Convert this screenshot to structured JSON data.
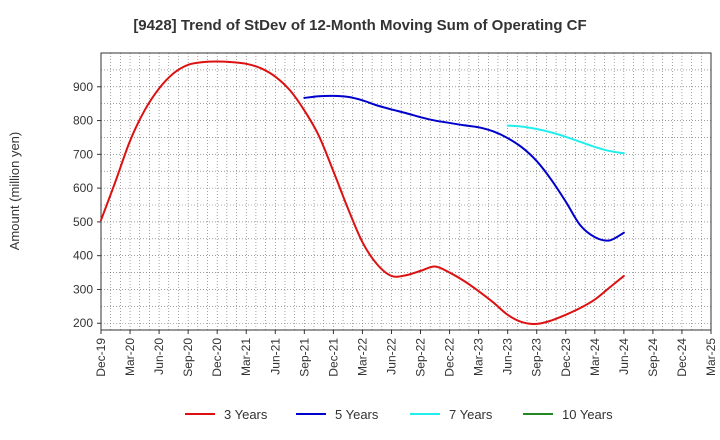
{
  "chart_data": {
    "type": "line",
    "title": "[9428]  Trend of StDev of 12-Month Moving Sum of Operating CF",
    "xlabel": "",
    "ylabel": "Amount (million yen)",
    "ylim": [
      180,
      1000
    ],
    "yticks": [
      200,
      300,
      400,
      500,
      600,
      700,
      800,
      900
    ],
    "x_ticks": [
      "Dec-19",
      "Mar-20",
      "Jun-20",
      "Sep-20",
      "Dec-20",
      "Mar-21",
      "Jun-21",
      "Sep-21",
      "Dec-21",
      "Mar-22",
      "Jun-22",
      "Sep-22",
      "Dec-22",
      "Mar-23",
      "Jun-23",
      "Sep-23",
      "Dec-23",
      "Mar-24",
      "Jun-24",
      "Sep-24",
      "Dec-24",
      "Mar-25"
    ],
    "grid": true,
    "legend_position": "bottom",
    "series": [
      {
        "name": "3 Years",
        "color": "#dd1111",
        "points": [
          [
            0,
            505
          ],
          [
            0.5,
            620
          ],
          [
            1,
            740
          ],
          [
            1.5,
            830
          ],
          [
            2,
            895
          ],
          [
            2.5,
            940
          ],
          [
            3,
            965
          ],
          [
            3.5,
            973
          ],
          [
            4,
            975
          ],
          [
            4.5,
            973
          ],
          [
            5,
            968
          ],
          [
            5.5,
            955
          ],
          [
            6,
            930
          ],
          [
            6.5,
            890
          ],
          [
            7,
            830
          ],
          [
            7.5,
            755
          ],
          [
            8,
            650
          ],
          [
            8.5,
            540
          ],
          [
            9,
            440
          ],
          [
            9.5,
            375
          ],
          [
            10,
            340
          ],
          [
            10.5,
            342
          ],
          [
            11,
            355
          ],
          [
            11.5,
            368
          ],
          [
            12,
            350
          ],
          [
            12.5,
            325
          ],
          [
            13,
            295
          ],
          [
            13.5,
            262
          ],
          [
            14,
            225
          ],
          [
            14.5,
            203
          ],
          [
            15,
            198
          ],
          [
            15.5,
            208
          ],
          [
            16,
            225
          ],
          [
            16.5,
            245
          ],
          [
            17,
            270
          ],
          [
            17.5,
            305
          ],
          [
            18,
            340
          ]
        ]
      },
      {
        "name": "5 Years",
        "color": "#0000cc",
        "points": [
          [
            7,
            867
          ],
          [
            7.5,
            872
          ],
          [
            8,
            873
          ],
          [
            8.5,
            870
          ],
          [
            9,
            860
          ],
          [
            9.5,
            845
          ],
          [
            10,
            833
          ],
          [
            10.5,
            822
          ],
          [
            11,
            810
          ],
          [
            11.5,
            800
          ],
          [
            12,
            793
          ],
          [
            12.5,
            786
          ],
          [
            13,
            780
          ],
          [
            13.5,
            768
          ],
          [
            14,
            748
          ],
          [
            14.5,
            720
          ],
          [
            15,
            680
          ],
          [
            15.5,
            625
          ],
          [
            16,
            560
          ],
          [
            16.5,
            490
          ],
          [
            17,
            455
          ],
          [
            17.5,
            445
          ],
          [
            18,
            468
          ]
        ]
      },
      {
        "name": "7 Years",
        "color": "#22eeee",
        "points": [
          [
            14,
            785
          ],
          [
            14.5,
            782
          ],
          [
            15,
            775
          ],
          [
            15.5,
            765
          ],
          [
            16,
            752
          ],
          [
            16.5,
            737
          ],
          [
            17,
            722
          ],
          [
            17.5,
            710
          ],
          [
            18,
            703
          ]
        ]
      },
      {
        "name": "10 Years",
        "color": "#228822",
        "points": []
      }
    ]
  }
}
